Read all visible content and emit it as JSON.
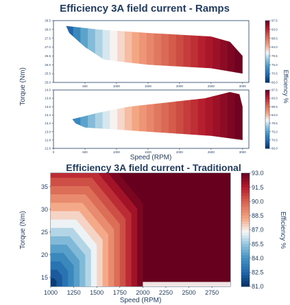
{
  "chart_data": [
    {
      "type": "heatmap",
      "title": "Efficiency 3A field current - Ramps",
      "ylabel": "Torque (Nm)",
      "xlabel": "",
      "colorbar_label": "Efficiency %",
      "xlim": [
        0,
        3100
      ],
      "ylim": [
        25.0,
        28.5
      ],
      "x_ticks": [
        "500",
        "1000",
        "1500",
        "2000",
        "2500",
        "3000"
      ],
      "y_ticks": [
        "25.0",
        "25.5",
        "26.0",
        "26.5",
        "27.0",
        "27.5",
        "28.0",
        "28.5"
      ],
      "colorbar_ticks": [
        "66.0",
        "70.5",
        "75.0",
        "79.5",
        "84.0",
        "88.5",
        "93.0",
        "97.5"
      ],
      "colorbar_range": [
        66.0,
        97.5
      ],
      "region": {
        "x": [
          [
            200,
            28.2
          ],
          [
            700,
            28.0
          ],
          [
            1500,
            27.8
          ],
          [
            2500,
            27.6
          ],
          [
            2800,
            27.3
          ],
          [
            3000,
            26.5
          ],
          [
            3000,
            25.5
          ],
          [
            2500,
            25.8
          ],
          [
            1500,
            26.0
          ],
          [
            1000,
            26.2
          ],
          [
            800,
            26.3
          ],
          [
            500,
            27.0
          ],
          [
            250,
            27.8
          ]
        ]
      },
      "efficiency_model": {
        "low_x": 200,
        "high_x": 3000,
        "low_eff": 66.0,
        "high_eff": 97.5
      }
    },
    {
      "type": "heatmap",
      "title": "",
      "ylabel": "",
      "xlabel": "Speed (RPM)",
      "colorbar_label": "Efficiency %",
      "xlim": [
        0,
        3100
      ],
      "ylim": [
        12.6,
        14.0
      ],
      "x_ticks": [
        "0",
        "500",
        "1000",
        "1500",
        "2000",
        "2500",
        "3000"
      ],
      "y_ticks": [
        "12.6",
        "12.8",
        "13.0",
        "13.2",
        "13.4",
        "13.6",
        "13.8",
        "14.0"
      ],
      "colorbar_ticks": [
        "66.0",
        "70.5",
        "75.0",
        "79.5",
        "84.0",
        "88.5",
        "93.0",
        "97.5"
      ],
      "colorbar_range": [
        66.0,
        97.5
      ],
      "region": {
        "x": [
          [
            300,
            13.3
          ],
          [
            700,
            13.45
          ],
          [
            1200,
            13.6
          ],
          [
            1800,
            13.7
          ],
          [
            2400,
            13.8
          ],
          [
            2800,
            13.95
          ],
          [
            2950,
            13.9
          ],
          [
            3000,
            13.6
          ],
          [
            3000,
            12.8
          ],
          [
            2500,
            12.9
          ],
          [
            2000,
            12.95
          ],
          [
            1500,
            13.0
          ],
          [
            1000,
            13.05
          ],
          [
            500,
            13.1
          ],
          [
            350,
            13.2
          ]
        ]
      },
      "efficiency_model": {
        "low_x": 200,
        "high_x": 3000,
        "low_eff": 66.0,
        "high_eff": 97.5
      }
    },
    {
      "type": "heatmap",
      "title": "Efficiency 3A field current - Traditional",
      "ylabel": "Torque (Nm)",
      "xlabel": "Speed (RPM)",
      "colorbar_label": "Efficiency %",
      "xlim": [
        1000,
        2950
      ],
      "ylim": [
        13,
        38
      ],
      "x_ticks": [
        "1000",
        "1250",
        "1500",
        "1750",
        "2000",
        "2250",
        "2500",
        "2750"
      ],
      "y_ticks": [
        "15",
        "20",
        "25",
        "30",
        "35"
      ],
      "colorbar_ticks": [
        "81.0",
        "82.5",
        "84.0",
        "85.5",
        "87.0",
        "88.5",
        "90.0",
        "91.5",
        "93.0"
      ],
      "colorbar_range": [
        81.0,
        93.0
      ],
      "region": {
        "x": [
          [
            1000,
            13
          ],
          [
            1000,
            38
          ],
          [
            2950,
            38
          ],
          [
            2950,
            13
          ]
        ]
      },
      "efficiency_model": {
        "split_x": 2000,
        "high_eff": 93.0,
        "low_eff": 81.0
      }
    }
  ]
}
